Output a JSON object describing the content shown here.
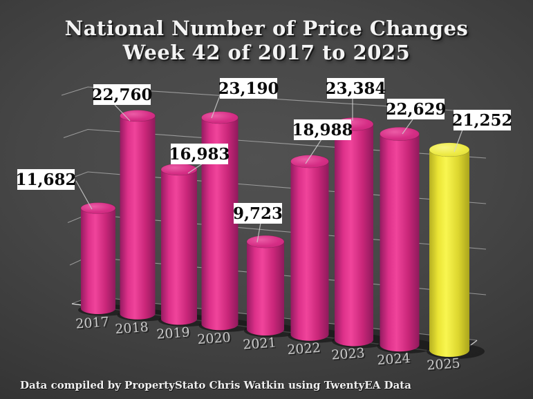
{
  "slide": {
    "title_line1": "National Number of Price Changes",
    "title_line2": "Week 42 of 2017 to 2025",
    "footer": "Data compiled by PropertyStato Chris Watkin using TwentyEA Data"
  },
  "chart_data": {
    "type": "bar",
    "variant": "3d-cylinder",
    "title": "National Number of Price Changes Week 42 of 2017 to 2025",
    "categories": [
      "2017",
      "2018",
      "2019",
      "2020",
      "2021",
      "2022",
      "2023",
      "2024",
      "2025"
    ],
    "values": [
      11682,
      22760,
      16983,
      23190,
      9723,
      18988,
      23384,
      22629,
      21252
    ],
    "value_labels": [
      "11,682",
      "22,760",
      "16,983",
      "23,190",
      "9,723",
      "18,988",
      "23,384",
      "22,629",
      "21,252"
    ],
    "xlabel": "",
    "ylabel": "",
    "ylim": [
      0,
      25000
    ],
    "gridline_step": 5000,
    "grid": true,
    "legend": "none",
    "bar_color": "#e0338c",
    "highlight": {
      "index": 8,
      "category": "2025",
      "color": "#f1ee3b"
    },
    "label_box": {
      "bg": "#ffffff",
      "text_color": "#111111"
    },
    "background": "dark-gray-gradient"
  }
}
